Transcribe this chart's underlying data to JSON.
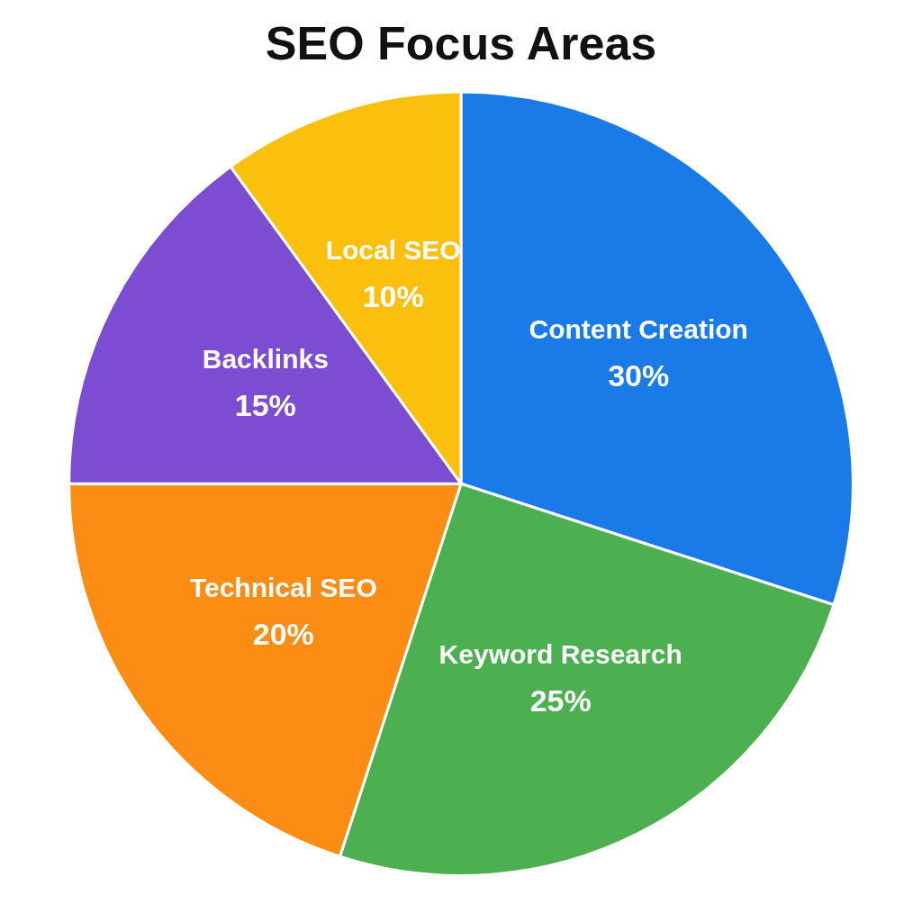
{
  "chart_data": {
    "type": "pie",
    "title": "SEO Focus Areas",
    "categories": [
      "Content Creation",
      "Keyword Research",
      "Technical SEO",
      "Backlinks",
      "Local SEO"
    ],
    "values": [
      30,
      25,
      20,
      15,
      10
    ],
    "colors": [
      "#1a7ae8",
      "#4caf50",
      "#fb8c14",
      "#7c4dd1",
      "#fbbf0e"
    ],
    "value_labels": [
      "30%",
      "25%",
      "20%",
      "15%",
      "10%"
    ],
    "legend": false
  }
}
